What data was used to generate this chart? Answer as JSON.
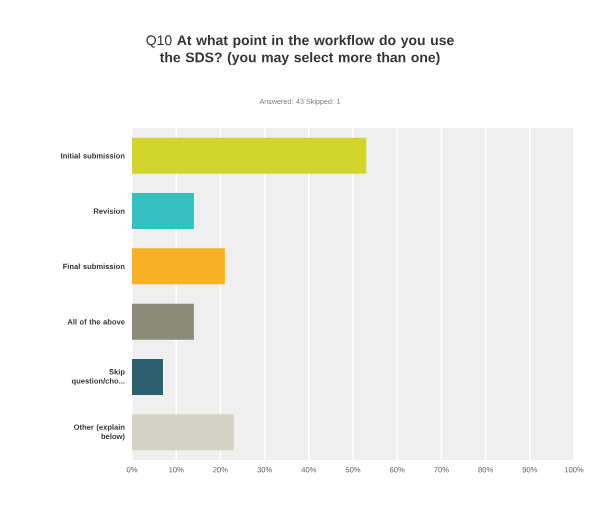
{
  "chart_data": {
    "type": "bar",
    "orientation": "horizontal",
    "title": "Q10 **At what point in the workflow do you use the SDS? (you may select more than one)**",
    "subtitle": "Answered: 43    Skipped: 1",
    "categories": [
      "Initial submission",
      "Revision",
      "Final submission",
      "All of the above",
      "Skip question/cho...",
      "Other (explain below)"
    ],
    "values": [
      53,
      14,
      21,
      14,
      7,
      23
    ],
    "colors": [
      "#d2d62c",
      "#34bfc0",
      "#f8b124",
      "#8b8b78",
      "#2c5f6e",
      "#d4d2c3"
    ],
    "xlim": [
      0,
      100
    ],
    "xticks": [
      {
        "value": 0,
        "label": "0%"
      },
      {
        "value": 10,
        "label": "10%"
      },
      {
        "value": 20,
        "label": "20%"
      },
      {
        "value": 30,
        "label": "30%"
      },
      {
        "value": 40,
        "label": "40%"
      },
      {
        "value": 50,
        "label": "50%"
      },
      {
        "value": 60,
        "label": "60%"
      },
      {
        "value": 70,
        "label": "70%"
      },
      {
        "value": 80,
        "label": "80%"
      },
      {
        "value": 90,
        "label": "90%"
      },
      {
        "value": 100,
        "label": "100%"
      }
    ],
    "grid": "x"
  }
}
